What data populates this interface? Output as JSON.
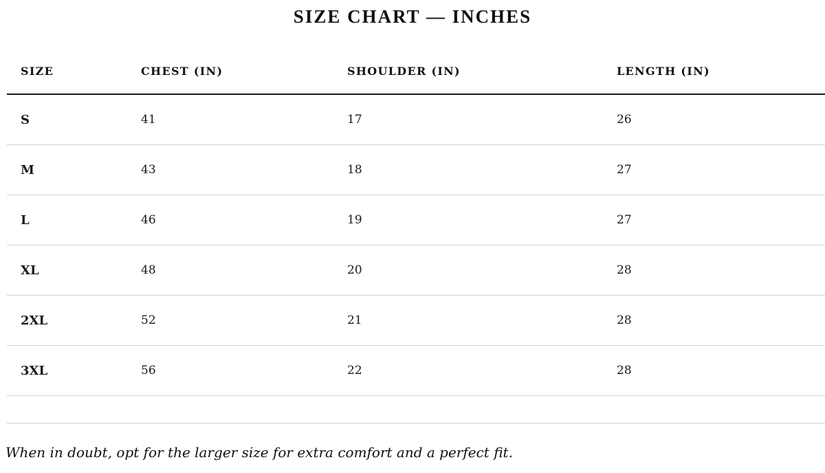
{
  "title": "SIZE CHART — INCHES",
  "table": {
    "headers": [
      "SIZE",
      "CHEST (IN)",
      "SHOULDER (IN)",
      "LENGTH (IN)"
    ],
    "rows": [
      [
        "S",
        "41",
        "17",
        "26"
      ],
      [
        "M",
        "43",
        "18",
        "27"
      ],
      [
        "L",
        "46",
        "19",
        "27"
      ],
      [
        "XL",
        "48",
        "20",
        "28"
      ],
      [
        "2XL",
        "52",
        "21",
        "28"
      ],
      [
        "3XL",
        "56",
        "22",
        "28"
      ]
    ]
  },
  "note": "When in doubt, opt for the larger size for extra comfort and a perfect fit."
}
